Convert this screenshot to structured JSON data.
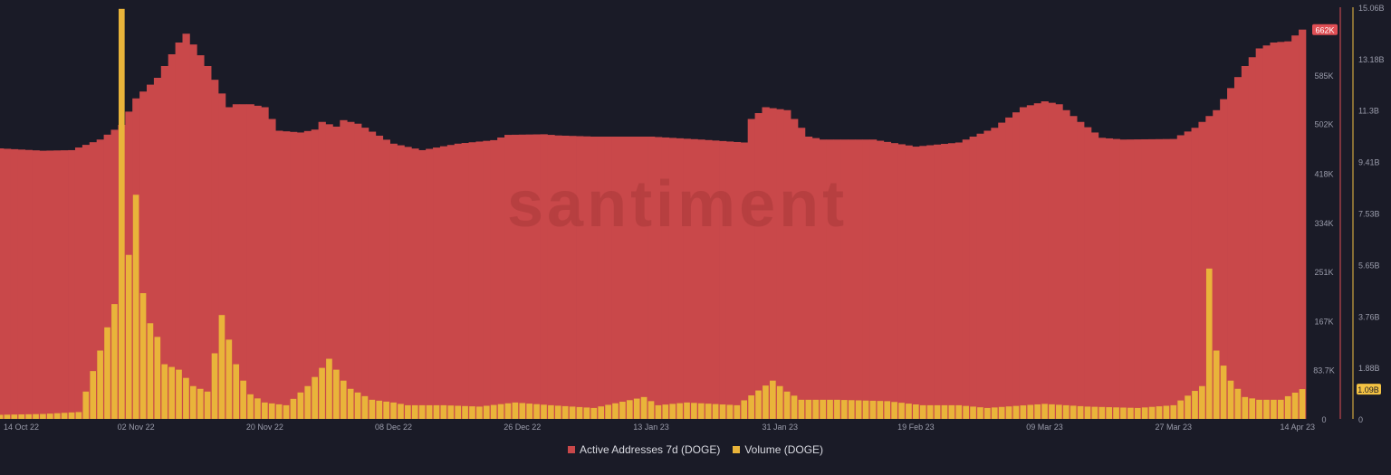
{
  "watermark": "santiment",
  "colors": {
    "background": "#1a1b27",
    "active_addresses": "#c9484a",
    "volume": "#e9b43a",
    "axis_text": "#9a9cab",
    "current_label_left": "#e04f55",
    "current_label_right": "#f3c243"
  },
  "chart_data": {
    "type": "bar",
    "x_range": [
      "2022-10-14",
      "2023-04-14"
    ],
    "x_tick_labels": [
      "14 Oct 22",
      "02 Nov 22",
      "20 Nov 22",
      "08 Dec 22",
      "26 Dec 22",
      "13 Jan 23",
      "31 Jan 23",
      "19 Feb 23",
      "09 Mar 23",
      "27 Mar 23",
      "14 Apr 23"
    ],
    "grid": false,
    "legend_position": "bottom-center",
    "series": [
      {
        "name": "Active Addresses 7d (DOGE)",
        "type": "area-bar",
        "axis": "left",
        "ylim": [
          0,
          700000
        ],
        "y_tick_labels": [
          "0",
          "83.7K",
          "167K",
          "251K",
          "334K",
          "418K",
          "502K",
          "585K"
        ],
        "current_value_label": "662K",
        "x": [
          "2022-10-14",
          "2022-10-20",
          "2022-10-24",
          "2022-10-28",
          "2022-10-31",
          "2022-11-02",
          "2022-11-05",
          "2022-11-08",
          "2022-11-09",
          "2022-11-12",
          "2022-11-15",
          "2022-11-16",
          "2022-11-18",
          "2022-11-20",
          "2022-11-22",
          "2022-11-25",
          "2022-11-27",
          "2022-11-28",
          "2022-11-30",
          "2022-12-01",
          "2022-12-03",
          "2022-12-08",
          "2022-12-12",
          "2022-12-17",
          "2022-12-22",
          "2022-12-24",
          "2022-12-29",
          "2022-12-31",
          "2023-01-05",
          "2023-01-13",
          "2023-01-20",
          "2023-01-26",
          "2023-01-27",
          "2023-01-29",
          "2023-02-01",
          "2023-02-04",
          "2023-02-06",
          "2023-02-09",
          "2023-02-13",
          "2023-02-19",
          "2023-02-25",
          "2023-03-02",
          "2023-03-06",
          "2023-03-09",
          "2023-03-11",
          "2023-03-14",
          "2023-03-17",
          "2023-03-20",
          "2023-03-27",
          "2023-03-30",
          "2023-04-02",
          "2023-04-06",
          "2023-04-08",
          "2023-04-10",
          "2023-04-12",
          "2023-04-14"
        ],
        "values": [
          460000,
          456000,
          457000,
          475000,
          500000,
          545000,
          580000,
          640000,
          655000,
          600000,
          530000,
          535000,
          535000,
          530000,
          490000,
          487000,
          492000,
          505000,
          497000,
          508000,
          502000,
          468000,
          457000,
          468000,
          474000,
          483000,
          484000,
          482000,
          480000,
          480000,
          475000,
          470000,
          510000,
          530000,
          525000,
          480000,
          475000,
          475000,
          475000,
          463000,
          470000,
          495000,
          530000,
          540000,
          535000,
          505000,
          478000,
          475000,
          476000,
          495000,
          525000,
          600000,
          630000,
          640000,
          642000,
          662000
        ]
      },
      {
        "name": "Volume (DOGE)",
        "type": "bar",
        "axis": "right",
        "ylim": [
          0,
          15060000000
        ],
        "y_tick_labels": [
          "0",
          "1.88B",
          "3.76B",
          "5.65B",
          "7.53B",
          "9.41B",
          "11.3B",
          "13.18B",
          "15.06B"
        ],
        "current_value_label": "1.09B",
        "x": [
          "2022-10-14",
          "2022-10-20",
          "2022-10-25",
          "2022-10-28",
          "2022-10-30",
          "2022-10-31",
          "2022-11-01",
          "2022-11-02",
          "2022-11-03",
          "2022-11-04",
          "2022-11-05",
          "2022-11-06",
          "2022-11-08",
          "2022-11-10",
          "2022-11-12",
          "2022-11-14",
          "2022-11-16",
          "2022-11-17",
          "2022-11-18",
          "2022-11-20",
          "2022-11-23",
          "2022-11-26",
          "2022-11-29",
          "2022-12-01",
          "2022-12-02",
          "2022-12-05",
          "2022-12-08",
          "2022-12-10",
          "2022-12-15",
          "2022-12-20",
          "2022-12-25",
          "2022-12-30",
          "2023-01-05",
          "2023-01-12",
          "2023-01-14",
          "2023-01-18",
          "2023-01-25",
          "2023-01-30",
          "2023-02-01",
          "2023-02-03",
          "2023-02-08",
          "2023-02-15",
          "2023-02-20",
          "2023-02-25",
          "2023-03-01",
          "2023-03-09",
          "2023-03-15",
          "2023-03-22",
          "2023-03-27",
          "2023-03-31",
          "2023-04-01",
          "2023-04-02",
          "2023-04-04",
          "2023-04-06",
          "2023-04-08",
          "2023-04-11",
          "2023-04-14"
        ],
        "values": [
          150000000,
          180000000,
          250000000,
          2500000000,
          4200000000,
          15000000000,
          6000000000,
          8200000000,
          4600000000,
          3500000000,
          3000000000,
          2000000000,
          1800000000,
          1200000000,
          1000000000,
          3800000000,
          2000000000,
          1400000000,
          900000000,
          600000000,
          500000000,
          1200000000,
          2200000000,
          1400000000,
          1100000000,
          700000000,
          600000000,
          500000000,
          500000000,
          450000000,
          600000000,
          500000000,
          400000000,
          800000000,
          500000000,
          600000000,
          500000000,
          1400000000,
          1000000000,
          700000000,
          700000000,
          650000000,
          500000000,
          500000000,
          400000000,
          550000000,
          450000000,
          400000000,
          500000000,
          1200000000,
          5500000000,
          2500000000,
          1400000000,
          800000000,
          700000000,
          700000000,
          1090000000
        ]
      }
    ]
  },
  "legend": {
    "items": [
      {
        "label": "Active Addresses 7d (DOGE)",
        "color": "#c9484a"
      },
      {
        "label": "Volume (DOGE)",
        "color": "#e9b43a"
      }
    ]
  }
}
